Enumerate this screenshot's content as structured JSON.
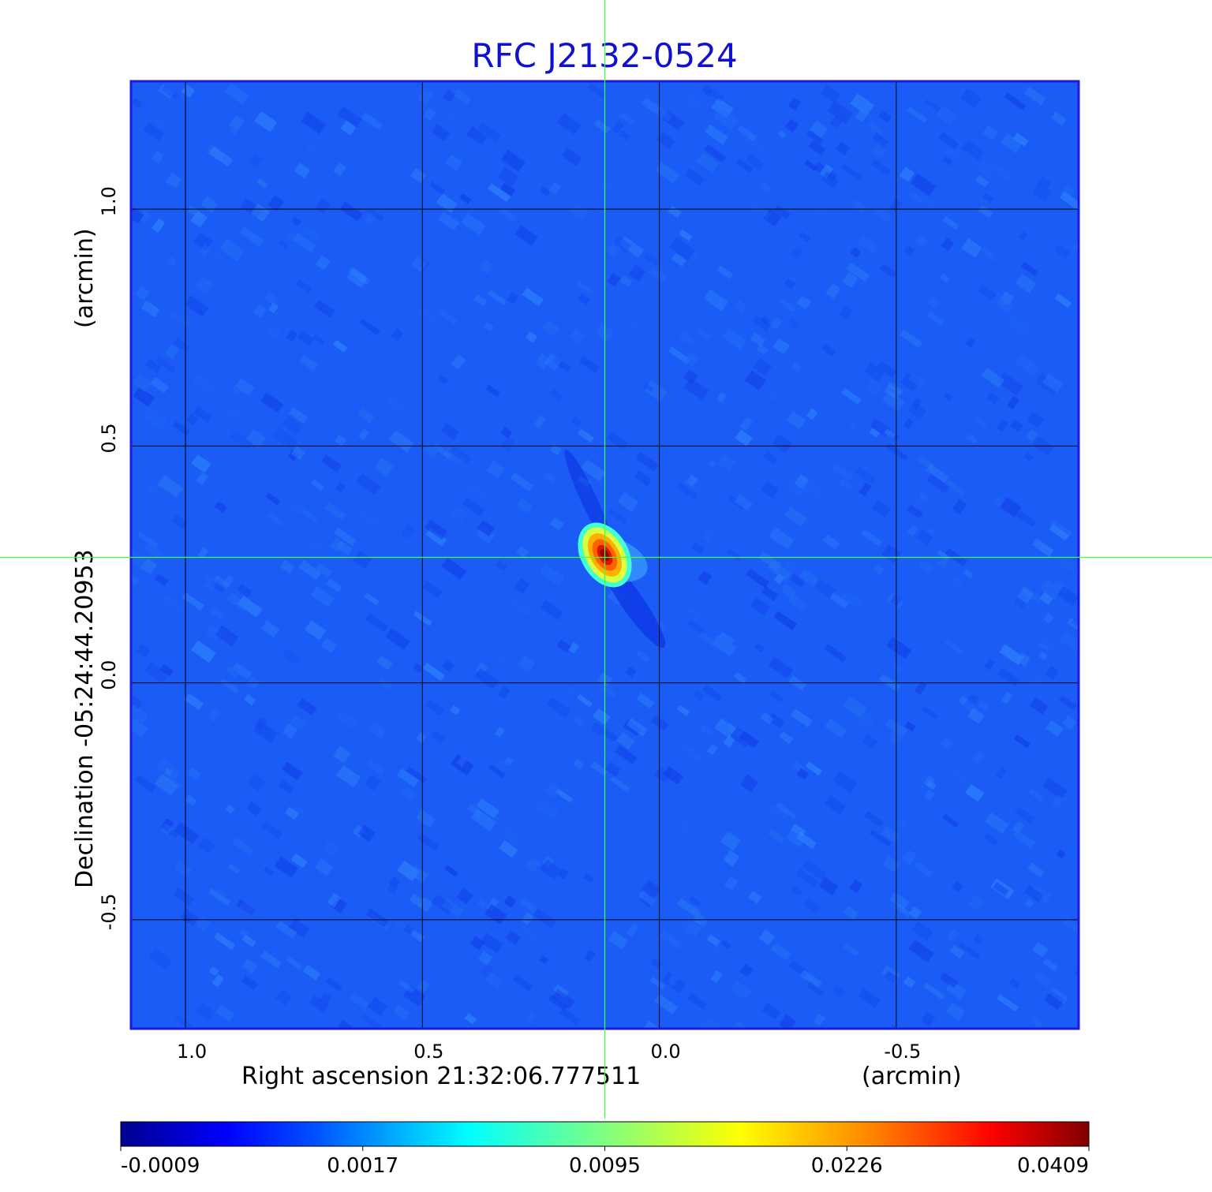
{
  "chart_data": {
    "type": "heatmap",
    "title": "RFC J2132-0524",
    "xlabel": "Right ascension  21:32:06.777511",
    "xunit": "(arcmin)",
    "ylabel": "Declination  -05:24:44.20953",
    "yunit": "(arcmin)",
    "x_ticks": [
      {
        "value": 1.0,
        "label": "1.0"
      },
      {
        "value": 0.5,
        "label": "0.5"
      },
      {
        "value": 0.0,
        "label": "0.0"
      },
      {
        "value": -0.5,
        "label": "-0.5"
      }
    ],
    "y_ticks": [
      {
        "value": 1.0,
        "label": "1.0"
      },
      {
        "value": 0.5,
        "label": "0.5"
      },
      {
        "value": 0.0,
        "label": "0.0"
      },
      {
        "value": -0.5,
        "label": "-0.5"
      }
    ],
    "xlim": [
      1.115,
      -0.885
    ],
    "ylim": [
      -0.73,
      1.27
    ],
    "grid": true,
    "crosshair": {
      "x": 0.115,
      "y": 0.265
    },
    "peak": {
      "x": 0.115,
      "y": 0.27,
      "value": 0.0409
    },
    "colorbar": {
      "orientation": "horizontal",
      "position": "bottom",
      "ticks": [
        "-0.0009",
        "0.0017",
        "0.0095",
        "0.0226",
        "0.0409"
      ],
      "min": -0.0009,
      "max": 0.0409
    },
    "colors": {
      "title": "#1010d0",
      "crosshair": "#40ff40",
      "background_field": "#1a5cf5",
      "colormap": [
        "#00008f",
        "#0000ff",
        "#00ffff",
        "#ffff00",
        "#ff0000",
        "#800000"
      ]
    }
  }
}
